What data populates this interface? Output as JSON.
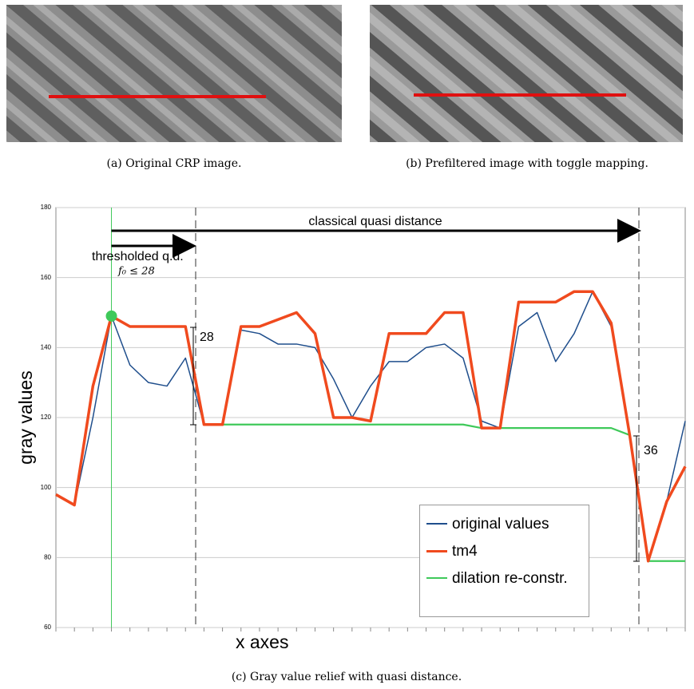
{
  "panels": [
    {
      "caption": "(a)  Original CRP image."
    },
    {
      "caption": "(b)  Prefiltered image with toggle mapping."
    }
  ],
  "chart_data": {
    "type": "line",
    "caption": "(c) Gray value relief with quasi distance.",
    "y_label": "gray values",
    "x_label": "x axes",
    "annotations": [
      "classical quasi distance",
      "thresholded q.d.",
      "f₀ ≤ 28",
      "28",
      "36"
    ],
    "categories": [
      null,
      null,
      null,
      null,
      null,
      null,
      null,
      null,
      null,
      null,
      null,
      null,
      null,
      null,
      null,
      null,
      null,
      null,
      null,
      null,
      null,
      null,
      null,
      null,
      null,
      null,
      null,
      null,
      null,
      null,
      null,
      null,
      null,
      null,
      null
    ],
    "series": [
      {
        "name": "original values",
        "color": "#1f4e8c",
        "values": [
          98,
          95,
          120,
          149,
          135,
          130,
          129,
          137,
          118,
          118,
          145,
          144,
          141,
          141,
          140,
          131,
          120,
          129,
          136,
          136,
          140,
          141,
          137,
          119,
          117,
          146,
          150,
          136,
          144,
          156,
          146,
          115,
          79,
          96,
          119
        ]
      },
      {
        "name": "tm4",
        "color": "#f04a1e",
        "values": [
          98,
          95,
          129,
          149,
          146,
          146,
          146,
          146,
          118,
          118,
          146,
          146,
          148,
          150,
          144,
          120,
          120,
          119,
          144,
          144,
          144,
          150,
          150,
          117,
          117,
          153,
          153,
          153,
          156,
          156,
          147,
          115,
          79,
          96,
          106
        ]
      },
      {
        "name": "dilation re-constr.",
        "color": "#3fc95a",
        "values": [
          null,
          null,
          null,
          149,
          146,
          146,
          146,
          146,
          118,
          118,
          118,
          118,
          118,
          118,
          118,
          118,
          118,
          118,
          118,
          118,
          118,
          118,
          118,
          117,
          117,
          117,
          117,
          117,
          117,
          117,
          117,
          115,
          79,
          79,
          79
        ]
      }
    ],
    "ylim": [
      60,
      180
    ],
    "yticks": [
      60,
      80,
      100,
      120,
      140,
      160,
      180
    ],
    "grid": true
  }
}
